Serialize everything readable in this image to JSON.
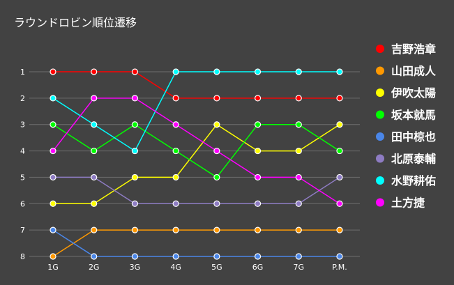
{
  "chart_data": {
    "type": "line",
    "title": "ラウンドロビン順位遷移",
    "xlabel": "",
    "ylabel": "",
    "categories": [
      "1G",
      "2G",
      "3G",
      "4G",
      "5G",
      "6G",
      "7G",
      "P.M."
    ],
    "y_ticks": [
      "1",
      "2",
      "3",
      "4",
      "5",
      "6",
      "7",
      "8"
    ],
    "ylim": [
      1,
      8
    ],
    "y_inverted": true,
    "grid": true,
    "legend_position": "right",
    "series": [
      {
        "name": "吉野浩章",
        "color": "#ff0000",
        "values": [
          1,
          1,
          1,
          2,
          2,
          2,
          2,
          2
        ]
      },
      {
        "name": "山田成人",
        "color": "#ff9900",
        "values": [
          8,
          7,
          7,
          7,
          7,
          7,
          7,
          7
        ]
      },
      {
        "name": "伊吹太陽",
        "color": "#ffff00",
        "values": [
          6,
          6,
          5,
          5,
          3,
          4,
          4,
          3
        ]
      },
      {
        "name": "坂本就馬",
        "color": "#00ff00",
        "values": [
          3,
          4,
          3,
          4,
          5,
          3,
          3,
          4
        ]
      },
      {
        "name": "田中椋也",
        "color": "#4a86e8",
        "values": [
          7,
          8,
          8,
          8,
          8,
          8,
          8,
          8
        ]
      },
      {
        "name": "北原泰輔",
        "color": "#8e7cc3",
        "values": [
          5,
          5,
          6,
          6,
          6,
          6,
          6,
          5
        ]
      },
      {
        "name": "水野耕佑",
        "color": "#00ffff",
        "values": [
          2,
          3,
          4,
          1,
          1,
          1,
          1,
          1
        ]
      },
      {
        "name": "土方捷",
        "color": "#ff00ff",
        "values": [
          4,
          2,
          2,
          3,
          4,
          5,
          5,
          6
        ]
      }
    ]
  }
}
